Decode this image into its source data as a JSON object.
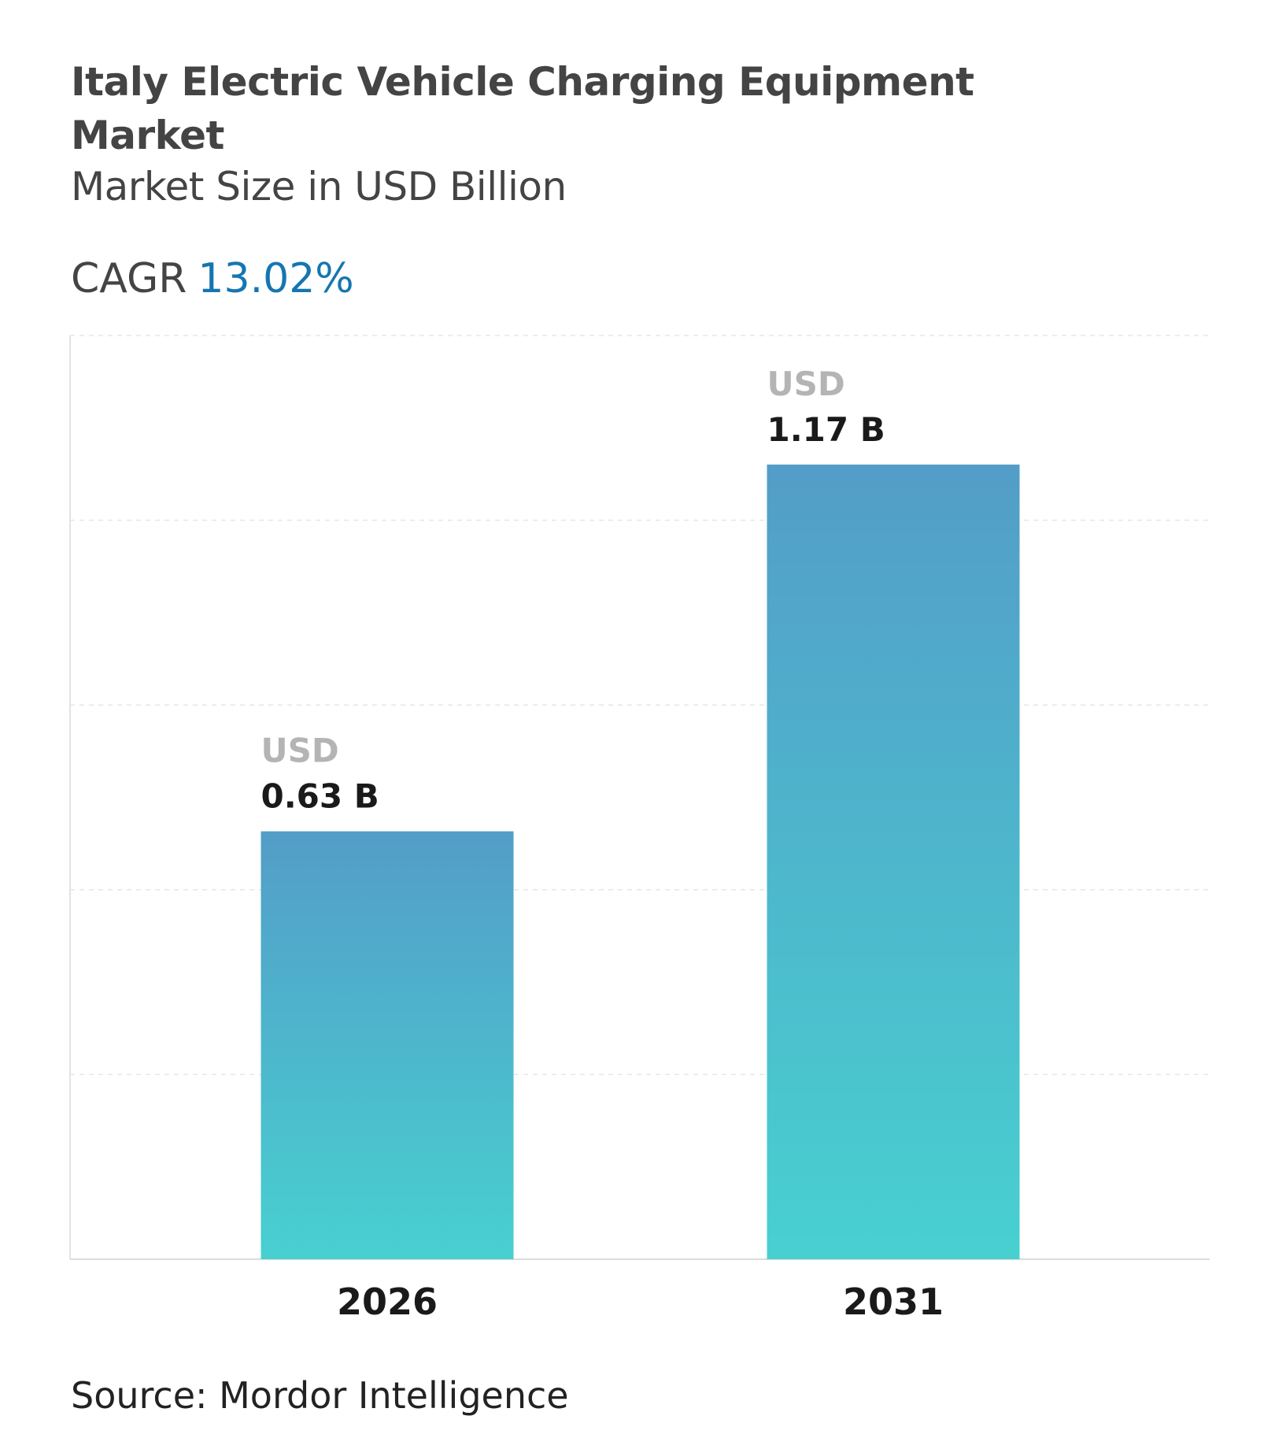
{
  "header": {
    "title": "Italy Electric Vehicle Charging Equipment Market",
    "subtitle": "Market Size in USD Billion",
    "cagr_label": "CAGR",
    "cagr_value": "13.02%"
  },
  "chart_data": {
    "type": "bar",
    "categories": [
      "2026",
      "2031"
    ],
    "values": [
      0.63,
      1.17
    ],
    "data_labels": [
      {
        "prefix": "USD",
        "value": "0.63 B"
      },
      {
        "prefix": "USD",
        "value": "1.17 B"
      }
    ],
    "ylim": [
      0,
      1.36
    ],
    "grid": true,
    "colors": {
      "bar_top": "#539dc8",
      "bar_bottom": "#48d0d0",
      "grid": "#e6e6e6",
      "prefix": "#b4b4b4",
      "value": "#1a1a1a"
    }
  },
  "footer": {
    "source": "Source: Mordor Intelligence"
  }
}
